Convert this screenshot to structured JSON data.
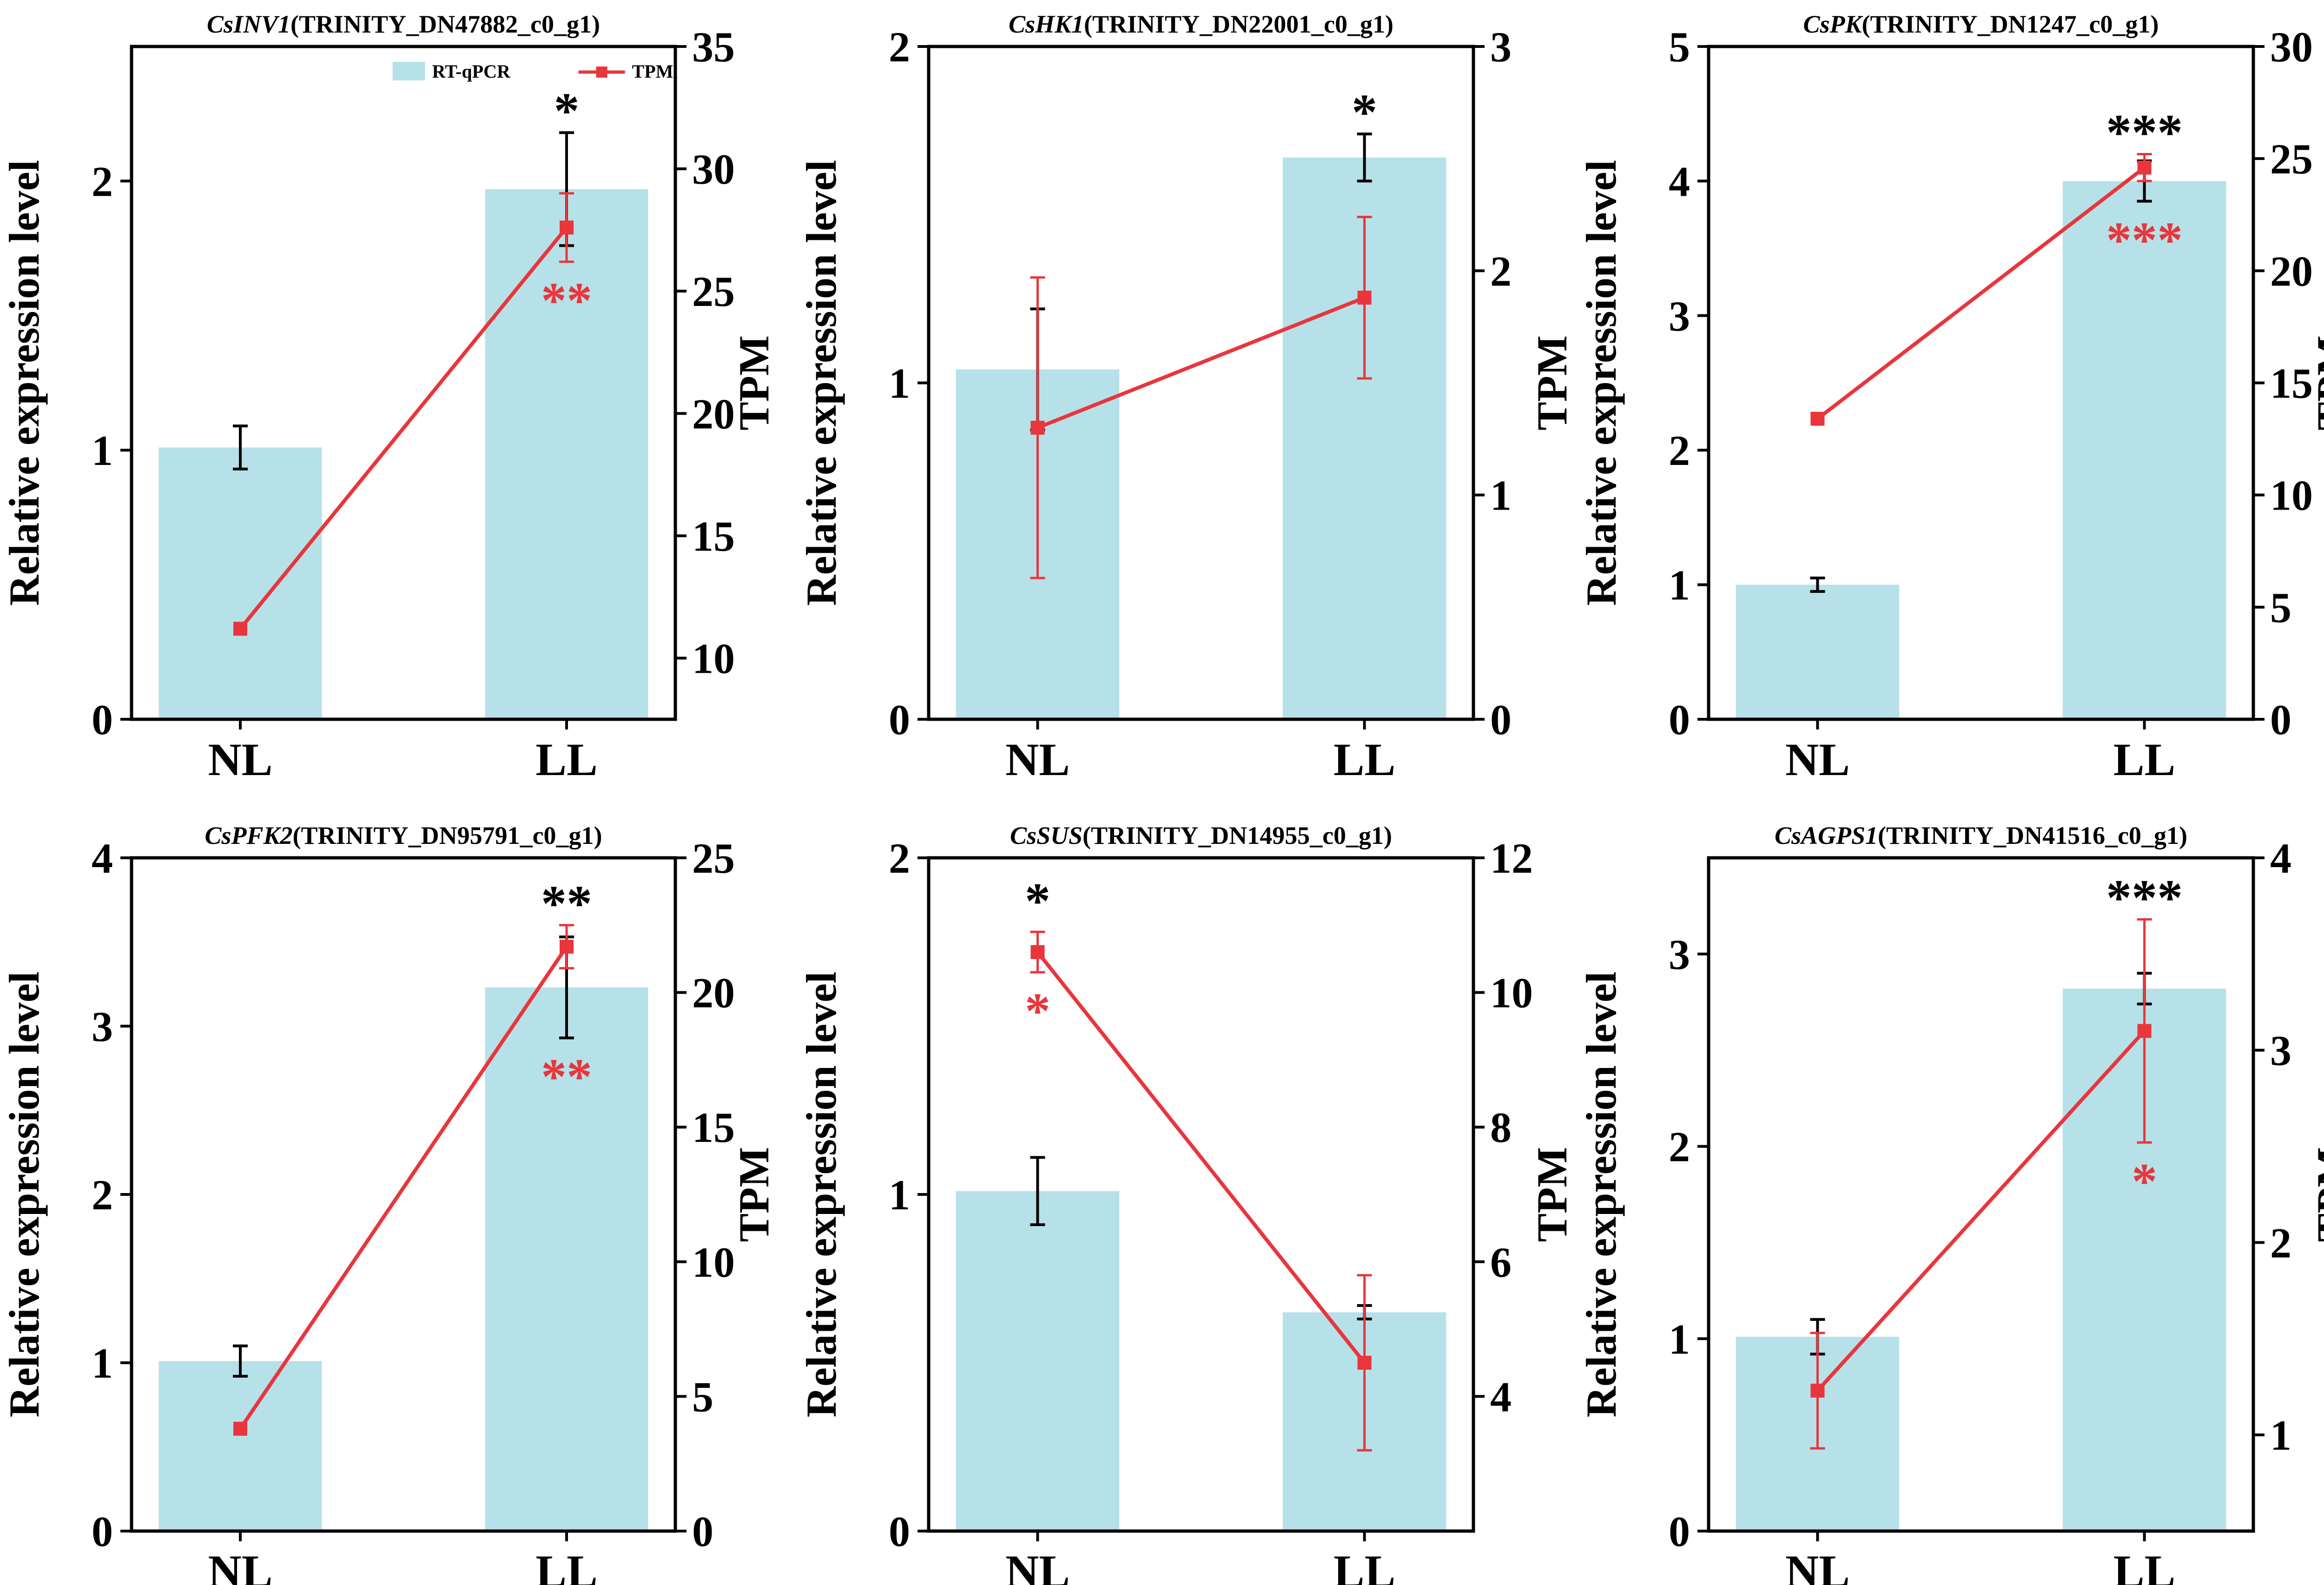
{
  "colors": {
    "bar": "#b7e1e8",
    "line": "#e8363c",
    "black": "#000000",
    "sig_tpm": "#e8363c"
  },
  "legend": {
    "bar_label": "RT-qPCR",
    "line_label": "TPM"
  },
  "chart_data": [
    {
      "type": "bar",
      "gene": "CsINV1",
      "title_rest": "(TRINITY_DN47882_c0_g1)",
      "categories": [
        "NL",
        "LL"
      ],
      "ylabel": "Relative expression level",
      "y2label": "TPM",
      "ylim": [
        0,
        2.5
      ],
      "yticks": [
        0,
        1,
        2
      ],
      "y2lim": [
        7.5,
        35
      ],
      "y2ticks": [
        10,
        15,
        20,
        25,
        30,
        35
      ],
      "values": [
        1.01,
        1.97
      ],
      "errors": [
        0.08,
        0.21
      ],
      "tpm": [
        11.2,
        27.6
      ],
      "tpm_errors": [
        0.0,
        1.4
      ],
      "sig_qpcr": "*",
      "sig_tpm": "**",
      "legend": true
    },
    {
      "type": "bar",
      "gene": "CsHK1",
      "title_rest": "(TRINITY_DN22001_c0_g1)",
      "categories": [
        "NL",
        "LL"
      ],
      "ylabel": "Relative expression level",
      "y2label": "TPM",
      "ylim": [
        0,
        2
      ],
      "yticks": [
        0,
        1,
        2
      ],
      "y2lim": [
        0,
        3
      ],
      "y2ticks": [
        0,
        1,
        2,
        3
      ],
      "values": [
        1.04,
        1.67
      ],
      "errors": [
        0.18,
        0.07
      ],
      "tpm": [
        1.3,
        1.88
      ],
      "tpm_errors": [
        0.67,
        0.36
      ],
      "sig_qpcr": "*",
      "sig_tpm": "",
      "legend": false
    },
    {
      "type": "bar",
      "gene": "CsPK",
      "title_rest": "(TRINITY_DN1247_c0_g1)",
      "categories": [
        "NL",
        "LL"
      ],
      "ylabel": "Relative expression level",
      "y2label": "TPM",
      "ylim": [
        0,
        5
      ],
      "yticks": [
        0,
        1,
        2,
        3,
        4,
        5
      ],
      "y2lim": [
        0,
        30
      ],
      "y2ticks": [
        0,
        5,
        10,
        15,
        20,
        25,
        30
      ],
      "values": [
        1.0,
        4.0
      ],
      "errors": [
        0.05,
        0.15
      ],
      "tpm": [
        13.4,
        24.6
      ],
      "tpm_errors": [
        0.0,
        0.6
      ],
      "sig_qpcr": "***",
      "sig_tpm": "***",
      "legend": false
    },
    {
      "type": "bar",
      "gene": "CsPFK2",
      "title_rest": "(TRINITY_DN95791_c0_g1)",
      "categories": [
        "NL",
        "LL"
      ],
      "ylabel": "Relative expression level",
      "y2label": "TPM",
      "ylim": [
        0,
        4
      ],
      "yticks": [
        0,
        1,
        2,
        3,
        4
      ],
      "y2lim": [
        0,
        25
      ],
      "y2ticks": [
        0,
        5,
        10,
        15,
        20,
        25
      ],
      "values": [
        1.01,
        3.23
      ],
      "errors": [
        0.09,
        0.3
      ],
      "tpm": [
        3.8,
        21.7
      ],
      "tpm_errors": [
        0.0,
        0.8
      ],
      "sig_qpcr": "**",
      "sig_tpm": "**",
      "legend": false
    },
    {
      "type": "bar",
      "gene": "CsSUS",
      "title_rest": "(TRINITY_DN14955_c0_g1)",
      "categories": [
        "NL",
        "LL"
      ],
      "ylabel": "Relative expression level",
      "y2label": "TPM",
      "ylim": [
        0,
        2
      ],
      "yticks": [
        0,
        1,
        2
      ],
      "y2lim": [
        2,
        12
      ],
      "y2ticks": [
        4,
        6,
        8,
        10,
        12
      ],
      "values": [
        1.01,
        0.65
      ],
      "errors": [
        0.1,
        0.02
      ],
      "tpm": [
        10.6,
        4.5
      ],
      "tpm_errors": [
        0.3,
        1.3
      ],
      "sig_qpcr": "*",
      "sig_tpm": "*",
      "sig_tpm_pos": "below",
      "legend": false
    },
    {
      "type": "bar",
      "gene": "CsAGPS1",
      "title_rest": "(TRINITY_DN41516_c0_g1)",
      "categories": [
        "NL",
        "LL"
      ],
      "ylabel": "Relative expression level",
      "y2label": "TPM",
      "ylim": [
        0,
        3.5
      ],
      "yticks": [
        0,
        1,
        2,
        3
      ],
      "y2lim": [
        0.5,
        4
      ],
      "y2ticks": [
        1,
        2,
        3,
        4
      ],
      "values": [
        1.01,
        2.82
      ],
      "errors": [
        0.09,
        0.08
      ],
      "tpm": [
        1.23,
        3.1
      ],
      "tpm_errors": [
        0.3,
        0.58
      ],
      "sig_qpcr": "***",
      "sig_tpm": "*",
      "legend": false
    }
  ]
}
